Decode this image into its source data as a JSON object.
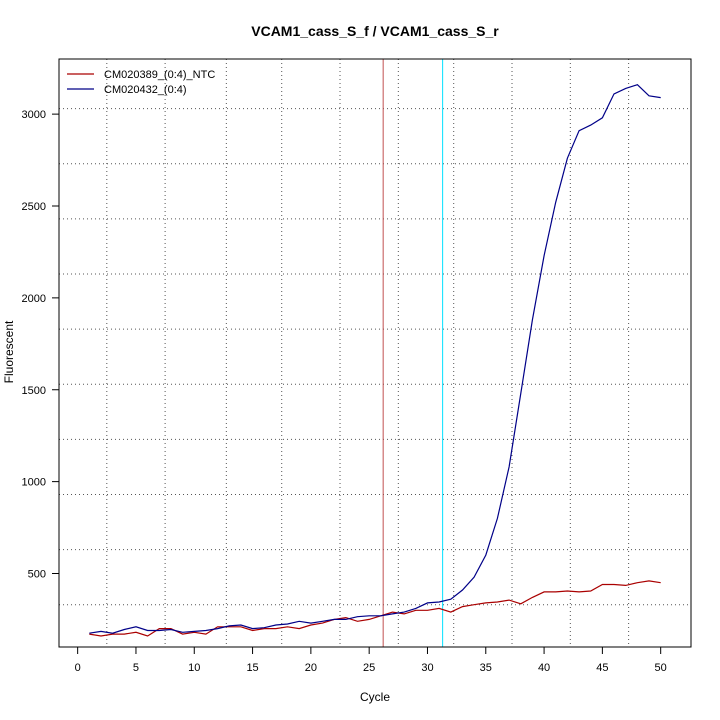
{
  "chart_data": {
    "type": "line",
    "title": "VCAM1_cass_S_f / VCAM1_cass_S_r",
    "xlabel": "Cycle",
    "ylabel": "Fluorescent",
    "xlim": [
      -1.6,
      52.6
    ],
    "ylim": [
      100,
      3300
    ],
    "x_ticks": [
      0,
      5,
      10,
      15,
      20,
      25,
      30,
      35,
      40,
      45,
      50
    ],
    "y_ticks": [
      500,
      1000,
      1500,
      2000,
      2500,
      3000
    ],
    "grid": true,
    "vertical_gridlines": [
      2.5,
      7.5,
      12.75,
      17.5,
      22.5,
      27.5,
      32.25,
      37.25,
      42.25,
      47.25
    ],
    "horizontal_gridlines": [
      330,
      630,
      930,
      1230,
      1530,
      1830,
      2130,
      2430,
      2730,
      3030
    ],
    "threshold_lines": [
      {
        "x": 26.2,
        "color": "#c05050"
      },
      {
        "x": 31.3,
        "color": "#00e0ff"
      }
    ],
    "legend_position": "top-left",
    "series": [
      {
        "name": "CM020389_(0:4)_NTC",
        "color": "#aa0000",
        "x": [
          1,
          2,
          3,
          4,
          5,
          6,
          7,
          8,
          9,
          10,
          11,
          12,
          13,
          14,
          15,
          16,
          17,
          18,
          19,
          20,
          21,
          22,
          23,
          24,
          25,
          26,
          27,
          28,
          29,
          30,
          31,
          32,
          33,
          34,
          35,
          36,
          37,
          38,
          39,
          40,
          41,
          42,
          43,
          44,
          45,
          46,
          47,
          48,
          49,
          50
        ],
        "y": [
          170,
          160,
          170,
          170,
          180,
          160,
          200,
          200,
          170,
          180,
          170,
          210,
          210,
          210,
          190,
          200,
          200,
          210,
          200,
          220,
          230,
          250,
          260,
          240,
          250,
          270,
          290,
          280,
          300,
          300,
          310,
          290,
          320,
          330,
          340,
          345,
          355,
          335,
          370,
          400,
          400,
          405,
          400,
          405,
          440,
          440,
          435,
          450,
          460,
          450
        ]
      },
      {
        "name": "CM020432_(0:4)",
        "color": "#000088",
        "x": [
          1,
          2,
          3,
          4,
          5,
          6,
          7,
          8,
          9,
          10,
          11,
          12,
          13,
          14,
          15,
          16,
          17,
          18,
          19,
          20,
          21,
          22,
          23,
          24,
          25,
          26,
          27,
          28,
          29,
          30,
          31,
          32,
          33,
          34,
          35,
          36,
          37,
          38,
          39,
          40,
          41,
          42,
          43,
          44,
          45,
          46,
          47,
          48,
          49,
          50
        ],
        "y": [
          175,
          185,
          175,
          195,
          210,
          190,
          190,
          195,
          180,
          185,
          190,
          200,
          215,
          220,
          200,
          205,
          220,
          225,
          240,
          230,
          240,
          250,
          250,
          265,
          270,
          270,
          280,
          290,
          310,
          340,
          345,
          360,
          410,
          480,
          600,
          800,
          1080,
          1480,
          1880,
          2230,
          2520,
          2760,
          2910,
          2940,
          2980,
          3110,
          3140,
          3160,
          3100,
          3090
        ]
      }
    ]
  }
}
